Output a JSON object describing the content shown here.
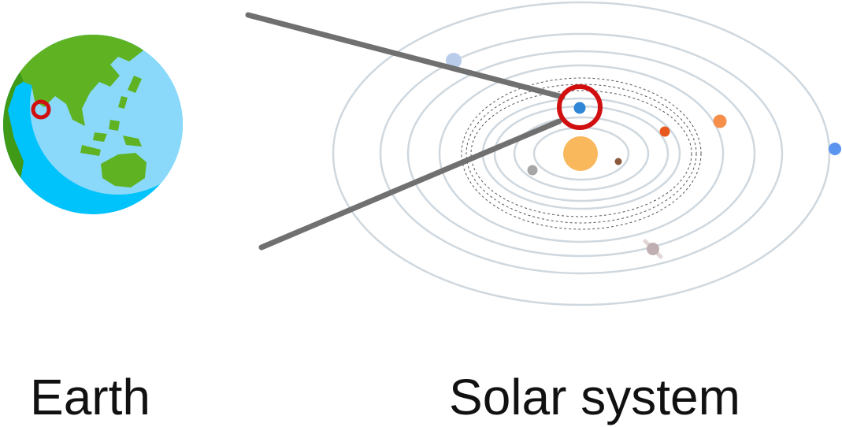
{
  "labels": {
    "earth": "Earth",
    "solar_system": "Solar system"
  },
  "colors": {
    "ocean": "#00c3fb",
    "ocean_light": "#8ad9fb",
    "land": "#5fb322",
    "land_dark": "#3f9a17",
    "marker": "#d10f0f",
    "sun": "#f9b85b",
    "orbit": "#cfd8df",
    "asteroid_belt": "#555555",
    "connector": "#707070",
    "planet_earth": "#2f86d6",
    "planet_mercury": "#a6a6a6",
    "planet_venus": "#8a5a3c",
    "planet_mars": "#e8571c",
    "planet_jupiter": "#f58f4a",
    "planet_saturn": "#bfaeb2",
    "planet_uranus": "#b9cdea",
    "planet_neptune": "#5b95f0"
  },
  "icons": {
    "globe": "globe-icon",
    "location_marker": "location-ring-icon",
    "highlight": "highlight-ring-icon"
  }
}
